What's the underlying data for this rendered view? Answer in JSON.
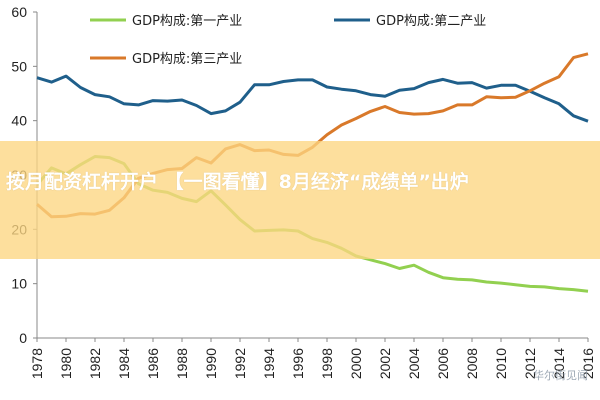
{
  "chart_data": {
    "type": "line",
    "title": "",
    "xlabel": "",
    "ylabel": "",
    "xlim": [
      1978,
      2016
    ],
    "ylim": [
      0,
      60
    ],
    "yticks": [
      0,
      10,
      20,
      30,
      40,
      50,
      60
    ],
    "xticks": [
      "1978",
      "1980",
      "1982",
      "1984",
      "1986",
      "1988",
      "1990",
      "1992",
      "1994",
      "1996",
      "1998",
      "2000",
      "2002",
      "2004",
      "2006",
      "2008",
      "2010",
      "2012",
      "2014",
      "2016"
    ],
    "grid": false,
    "legend_position": "top",
    "x": [
      1978,
      1979,
      1980,
      1981,
      1982,
      1983,
      1984,
      1985,
      1986,
      1987,
      1988,
      1989,
      1990,
      1991,
      1992,
      1993,
      1994,
      1995,
      1996,
      1997,
      1998,
      1999,
      2000,
      2001,
      2002,
      2003,
      2004,
      2005,
      2006,
      2007,
      2008,
      2009,
      2010,
      2011,
      2012,
      2013,
      2014,
      2015,
      2016
    ],
    "series": [
      {
        "name": "GDP构成:第一产业",
        "color": "#92d050",
        "values": [
          28.2,
          31.3,
          30.2,
          31.9,
          33.4,
          33.2,
          32.1,
          28.4,
          27.2,
          26.8,
          25.7,
          25.1,
          27.1,
          24.5,
          21.8,
          19.7,
          19.8,
          19.9,
          19.7,
          18.3,
          17.6,
          16.5,
          15.1,
          14.4,
          13.7,
          12.8,
          13.4,
          12.1,
          11.1,
          10.8,
          10.7,
          10.3,
          10.1,
          9.8,
          9.5,
          9.4,
          9.1,
          8.9,
          8.6
        ]
      },
      {
        "name": "GDP构成:第二产业",
        "color": "#1f5f8b",
        "values": [
          47.9,
          47.1,
          48.2,
          46.1,
          44.8,
          44.4,
          43.1,
          42.9,
          43.7,
          43.6,
          43.8,
          42.8,
          41.3,
          41.8,
          43.4,
          46.6,
          46.6,
          47.2,
          47.5,
          47.5,
          46.2,
          45.8,
          45.5,
          44.8,
          44.5,
          45.6,
          45.9,
          47.0,
          47.6,
          46.9,
          47.0,
          46.0,
          46.5,
          46.5,
          45.4,
          44.2,
          43.1,
          40.9,
          39.9
        ]
      },
      {
        "name": "GDP构成:第三产业",
        "color": "#d9792a",
        "values": [
          24.6,
          22.3,
          22.4,
          22.9,
          22.8,
          23.5,
          25.8,
          29.4,
          30.3,
          31.0,
          31.2,
          33.2,
          32.2,
          34.8,
          35.6,
          34.5,
          34.6,
          33.8,
          33.6,
          35.1,
          37.4,
          39.2,
          40.4,
          41.7,
          42.6,
          41.5,
          41.2,
          41.3,
          41.8,
          42.9,
          42.9,
          44.4,
          44.2,
          44.3,
          45.5,
          46.9,
          48.1,
          51.6,
          52.3
        ]
      }
    ]
  },
  "overlay": {
    "headline": "按月配资杠杆开户 【一图看懂】8月经济“成绩单”出炉"
  },
  "watermark": {
    "text": "华尔街见闻"
  }
}
